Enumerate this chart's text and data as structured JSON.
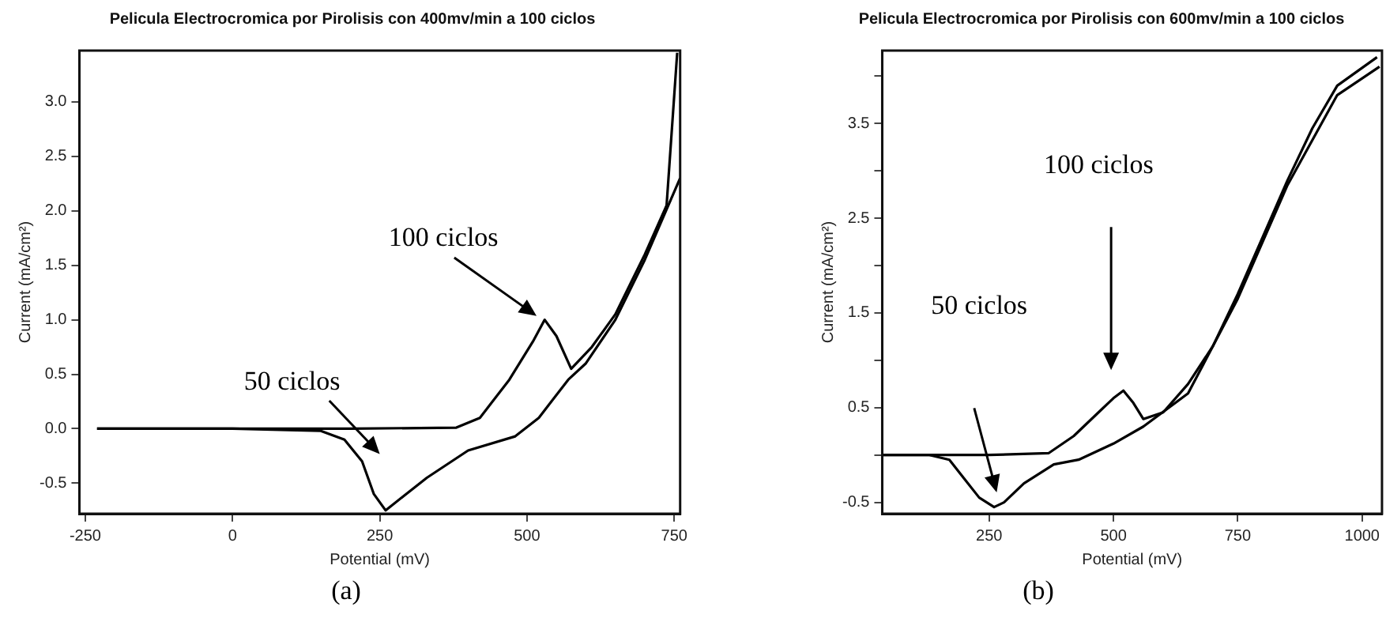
{
  "chart_data": [
    {
      "type": "line",
      "title": "Pelicula Electrocromica por Pirolisis con 400mv/min a 100 ciclos",
      "xlabel": "Potential (mV)",
      "ylabel": "Current (mA/cm²)",
      "xlim": [
        -260,
        760
      ],
      "ylim": [
        -0.78,
        3.47
      ],
      "xticks": [
        -250,
        0,
        250,
        500,
        750
      ],
      "yticks": [
        {
          "value": -0.5,
          "label": "-0.5"
        },
        {
          "value": 0,
          "label": "0.0"
        },
        {
          "value": 0.5,
          "label": "0.5"
        },
        {
          "value": 1,
          "label": "1.0"
        },
        {
          "value": 1.5,
          "label": "1.5"
        },
        {
          "value": 2,
          "label": "2.0"
        },
        {
          "value": 2.5,
          "label": "2.5"
        },
        {
          "value": 3,
          "label": "3.0"
        }
      ],
      "series": [
        {
          "color": "#000000",
          "x": [
            -230,
            0,
            200,
            380,
            420,
            470,
            510,
            530,
            550,
            575,
            610,
            650,
            700,
            737,
            755
          ],
          "values": [
            0,
            0,
            0,
            0.01,
            0.1,
            0.45,
            0.8,
            1.0,
            0.85,
            0.55,
            0.75,
            1.05,
            1.6,
            2.05,
            3.45
          ]
        },
        {
          "color": "#000000",
          "x": [
            760,
            700,
            650,
            600,
            570,
            520,
            480,
            400,
            330,
            290,
            260,
            240,
            220,
            190,
            150,
            0,
            -230
          ],
          "values": [
            2.3,
            1.55,
            1.0,
            0.6,
            0.45,
            0.1,
            -0.07,
            -0.2,
            -0.45,
            -0.62,
            -0.75,
            -0.6,
            -0.3,
            -0.1,
            -0.02,
            0,
            0
          ]
        }
      ],
      "annotations": [
        "100 ciclos",
        "50 ciclos",
        "(a)"
      ]
    },
    {
      "type": "line",
      "title": "Pelicula Electrocromica por Pirolisis con 600mv/min a 100 ciclos",
      "xlabel": "Potential (mV)",
      "ylabel": "Current (mA/cm²)",
      "xlim": [
        35,
        1040
      ],
      "ylim": [
        -0.62,
        4.27
      ],
      "xticks": [
        250,
        500,
        750,
        1000
      ],
      "yticks": [
        -0.5,
        {
          "value": 0,
          "label": null
        },
        0.5,
        {
          "value": 1,
          "label": null
        },
        1.5,
        {
          "value": 2,
          "label": null
        },
        2.5,
        {
          "value": 3,
          "label": null
        },
        3.5,
        {
          "value": 4,
          "label": null
        }
      ],
      "series": [
        {
          "color": "#000000",
          "x": [
            35,
            250,
            370,
            420,
            470,
            500,
            520,
            540,
            560,
            600,
            650,
            700,
            750,
            800,
            850,
            900,
            950,
            1030
          ],
          "values": [
            0,
            0,
            0.02,
            0.2,
            0.45,
            0.6,
            0.68,
            0.55,
            0.38,
            0.45,
            0.75,
            1.15,
            1.7,
            2.3,
            2.9,
            3.45,
            3.9,
            4.2
          ]
        },
        {
          "color": "#000000",
          "x": [
            1035,
            950,
            850,
            750,
            650,
            560,
            500,
            430,
            380,
            320,
            280,
            260,
            230,
            200,
            170,
            130,
            35
          ],
          "values": [
            4.1,
            3.8,
            2.85,
            1.65,
            0.65,
            0.3,
            0.12,
            -0.05,
            -0.1,
            -0.3,
            -0.5,
            -0.55,
            -0.45,
            -0.25,
            -0.05,
            0,
            0
          ]
        }
      ],
      "annotations": [
        "100 ciclos",
        "50 ciclos",
        "(b)"
      ]
    }
  ]
}
